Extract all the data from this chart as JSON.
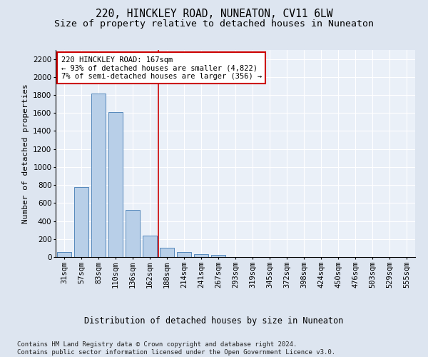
{
  "title": "220, HINCKLEY ROAD, NUNEATON, CV11 6LW",
  "subtitle": "Size of property relative to detached houses in Nuneaton",
  "xlabel": "Distribution of detached houses by size in Nuneaton",
  "ylabel": "Number of detached properties",
  "categories": [
    "31sqm",
    "57sqm",
    "83sqm",
    "110sqm",
    "136sqm",
    "162sqm",
    "188sqm",
    "214sqm",
    "241sqm",
    "267sqm",
    "293sqm",
    "319sqm",
    "345sqm",
    "372sqm",
    "398sqm",
    "424sqm",
    "450sqm",
    "476sqm",
    "503sqm",
    "529sqm",
    "555sqm"
  ],
  "values": [
    55,
    780,
    1820,
    1610,
    525,
    240,
    105,
    55,
    35,
    20,
    0,
    0,
    0,
    0,
    0,
    0,
    0,
    0,
    0,
    0,
    0
  ],
  "bar_color": "#b8cfe8",
  "bar_edge_color": "#5588bb",
  "vline_x": 5.5,
  "vline_color": "#cc0000",
  "annotation_text": "220 HINCKLEY ROAD: 167sqm\n← 93% of detached houses are smaller (4,822)\n7% of semi-detached houses are larger (356) →",
  "annotation_box_edgecolor": "#cc0000",
  "annotation_box_facecolor": "white",
  "ylim": [
    0,
    2300
  ],
  "yticks": [
    0,
    200,
    400,
    600,
    800,
    1000,
    1200,
    1400,
    1600,
    1800,
    2000,
    2200
  ],
  "footnote": "Contains HM Land Registry data © Crown copyright and database right 2024.\nContains public sector information licensed under the Open Government Licence v3.0.",
  "bg_color": "#dde5f0",
  "plot_bg_color": "#eaf0f8",
  "title_fontsize": 10.5,
  "subtitle_fontsize": 9.5,
  "xlabel_fontsize": 8.5,
  "ylabel_fontsize": 8,
  "tick_fontsize": 7.5,
  "footnote_fontsize": 6.5,
  "annot_fontsize": 7.5
}
